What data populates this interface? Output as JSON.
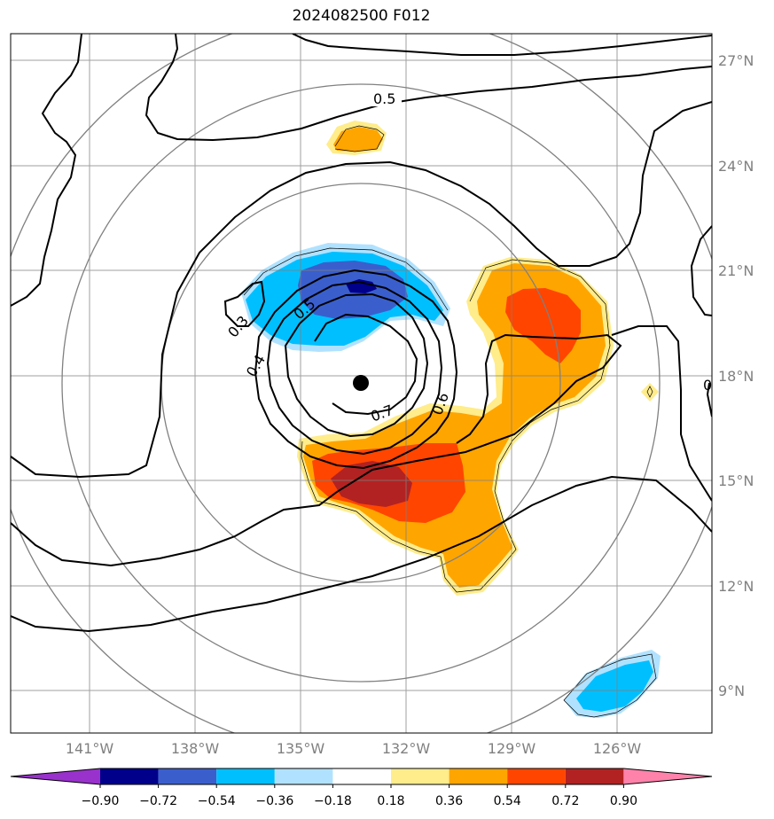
{
  "title": "2024082500 F012",
  "map": {
    "lat_labels": [
      "27°N",
      "24°N",
      "21°N",
      "18°N",
      "15°N",
      "12°N",
      "9°N"
    ],
    "lon_labels": [
      "141°W",
      "138°W",
      "135°W",
      "132°W",
      "129°W",
      "126°W"
    ],
    "contour_labels": [
      "0.5",
      "0.3",
      "0.4",
      "0.5",
      "0.6",
      "0.7",
      "0"
    ],
    "storm_center": {
      "lat": 17.8,
      "lon": 133.3
    }
  },
  "colorbar": {
    "colors": [
      "#9932cc",
      "#00008b",
      "#3a5fcd",
      "#00bfff",
      "#b0e2ff",
      "#ffffff",
      "#ffec8b",
      "#ffa500",
      "#ff4500",
      "#b22222",
      "#ff82ab"
    ],
    "tick_labels": [
      "−0.90",
      "−0.72",
      "−0.54",
      "−0.36",
      "−0.18",
      "0.18",
      "0.36",
      "0.54",
      "0.72",
      "0.90"
    ]
  }
}
